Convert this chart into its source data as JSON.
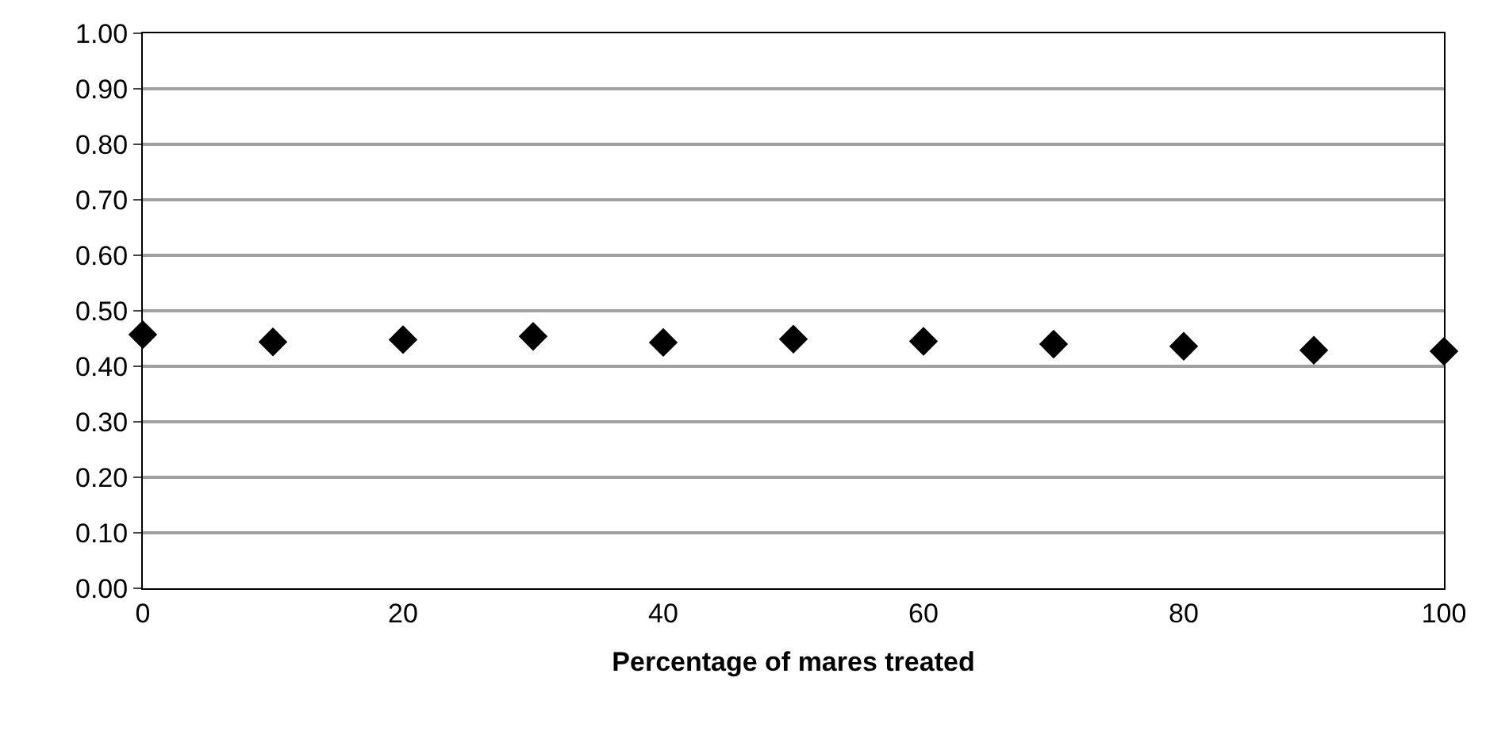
{
  "chart_data": {
    "type": "scatter",
    "xlabel": "Percentage of mares treated",
    "x": [
      0,
      10,
      20,
      30,
      40,
      50,
      60,
      70,
      80,
      90,
      100
    ],
    "series": [
      {
        "color": "#000000",
        "values": [
          0.457,
          0.444,
          0.448,
          0.454,
          0.443,
          0.449,
          0.445,
          0.44,
          0.436,
          0.429,
          0.427
        ]
      }
    ],
    "marker": "diamond",
    "xlim": [
      0,
      100
    ],
    "xticks": [
      0,
      20,
      40,
      60,
      80,
      100
    ],
    "ylim": [
      0,
      1
    ],
    "yticks": [
      {
        "value": 0,
        "label": "0.00"
      },
      {
        "value": 0.1,
        "label": "0.10"
      },
      {
        "value": 0.2,
        "label": "0.20"
      },
      {
        "value": 0.3,
        "label": "0.30"
      },
      {
        "value": 0.4,
        "label": "0.40"
      },
      {
        "value": 0.5,
        "label": "0.50"
      },
      {
        "value": 0.6,
        "label": "0.60"
      },
      {
        "value": 0.7,
        "label": "0.70"
      },
      {
        "value": 0.8,
        "label": "0.80"
      },
      {
        "value": 0.9,
        "label": "0.90"
      },
      {
        "value": 1,
        "label": "1.00"
      }
    ],
    "grid": "y",
    "legend": false
  }
}
